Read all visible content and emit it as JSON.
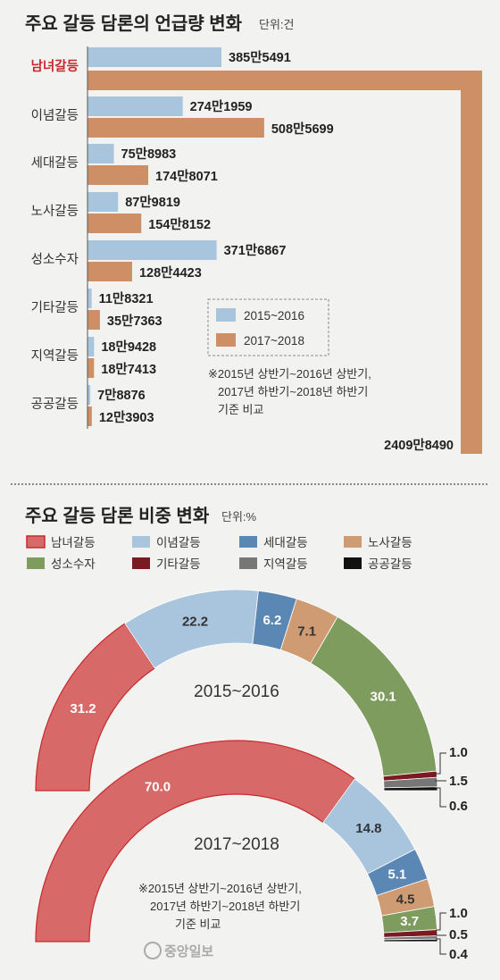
{
  "chart_data": [
    {
      "type": "bar",
      "title": "주요 갈등 담론의 언급량 변화",
      "unit": "단위:건",
      "categories": [
        "남녀갈등",
        "이념갈등",
        "세대갈등",
        "노사갈등",
        "성소수자",
        "기타갈등",
        "지역갈등",
        "공공갈등"
      ],
      "series": [
        {
          "name": "2015~2016",
          "color": "#a9c4dd",
          "values": [
            3855491,
            2741959,
            758983,
            879819,
            3716867,
            118321,
            189428,
            78876
          ],
          "labels": [
            "385만5491",
            "274만1959",
            "75만8983",
            "87만9819",
            "371만6867",
            "11만8321",
            "18만9428",
            "7만8876"
          ]
        },
        {
          "name": "2017~2018",
          "color": "#cf8f66",
          "values": [
            24098490,
            5085699,
            1748071,
            1548152,
            1284423,
            357363,
            187413,
            123903
          ],
          "labels": [
            "2409만8490",
            "508만5699",
            "174만8071",
            "154만8152",
            "128만4423",
            "35만7363",
            "18만7413",
            "12만3903"
          ]
        }
      ],
      "note": [
        "※2015년 상반기~2016년 상반기,",
        "2017년 하반기~2018년 하반기",
        "기준 비교"
      ]
    },
    {
      "type": "pie",
      "title": "주요 갈등 담론 비중 변화",
      "unit": "단위:%",
      "legend": [
        {
          "name": "남녀갈등",
          "color": "#d76a68"
        },
        {
          "name": "이념갈등",
          "color": "#a9c4dd"
        },
        {
          "name": "세대갈등",
          "color": "#5a87b3"
        },
        {
          "name": "노사갈등",
          "color": "#cf9b72"
        },
        {
          "name": "성소수자",
          "color": "#7e9c5e"
        },
        {
          "name": "기타갈등",
          "color": "#7a1a22"
        },
        {
          "name": "지역갈등",
          "color": "#777777"
        },
        {
          "name": "공공갈등",
          "color": "#111111"
        }
      ],
      "series": [
        {
          "name": "2015~2016",
          "values": [
            31.2,
            22.2,
            6.2,
            7.1,
            30.1,
            1.0,
            1.5,
            0.6
          ],
          "labels": [
            "31.2",
            "22.2",
            "6.2",
            "7.1",
            "30.1",
            "1.0",
            "1.5",
            "0.6"
          ]
        },
        {
          "name": "2017~2018",
          "values": [
            70.0,
            14.8,
            5.1,
            4.5,
            3.7,
            1.0,
            0.5,
            0.4
          ],
          "labels": [
            "70.0",
            "14.8",
            "5.1",
            "4.5",
            "3.7",
            "1.0",
            "0.5",
            "0.4"
          ]
        }
      ],
      "note": [
        "※2015년 상반기~2016년 상반기,",
        "2017년 하반기~2018년 하반기",
        "기준 비교"
      ]
    }
  ],
  "logo": "중앙일보"
}
